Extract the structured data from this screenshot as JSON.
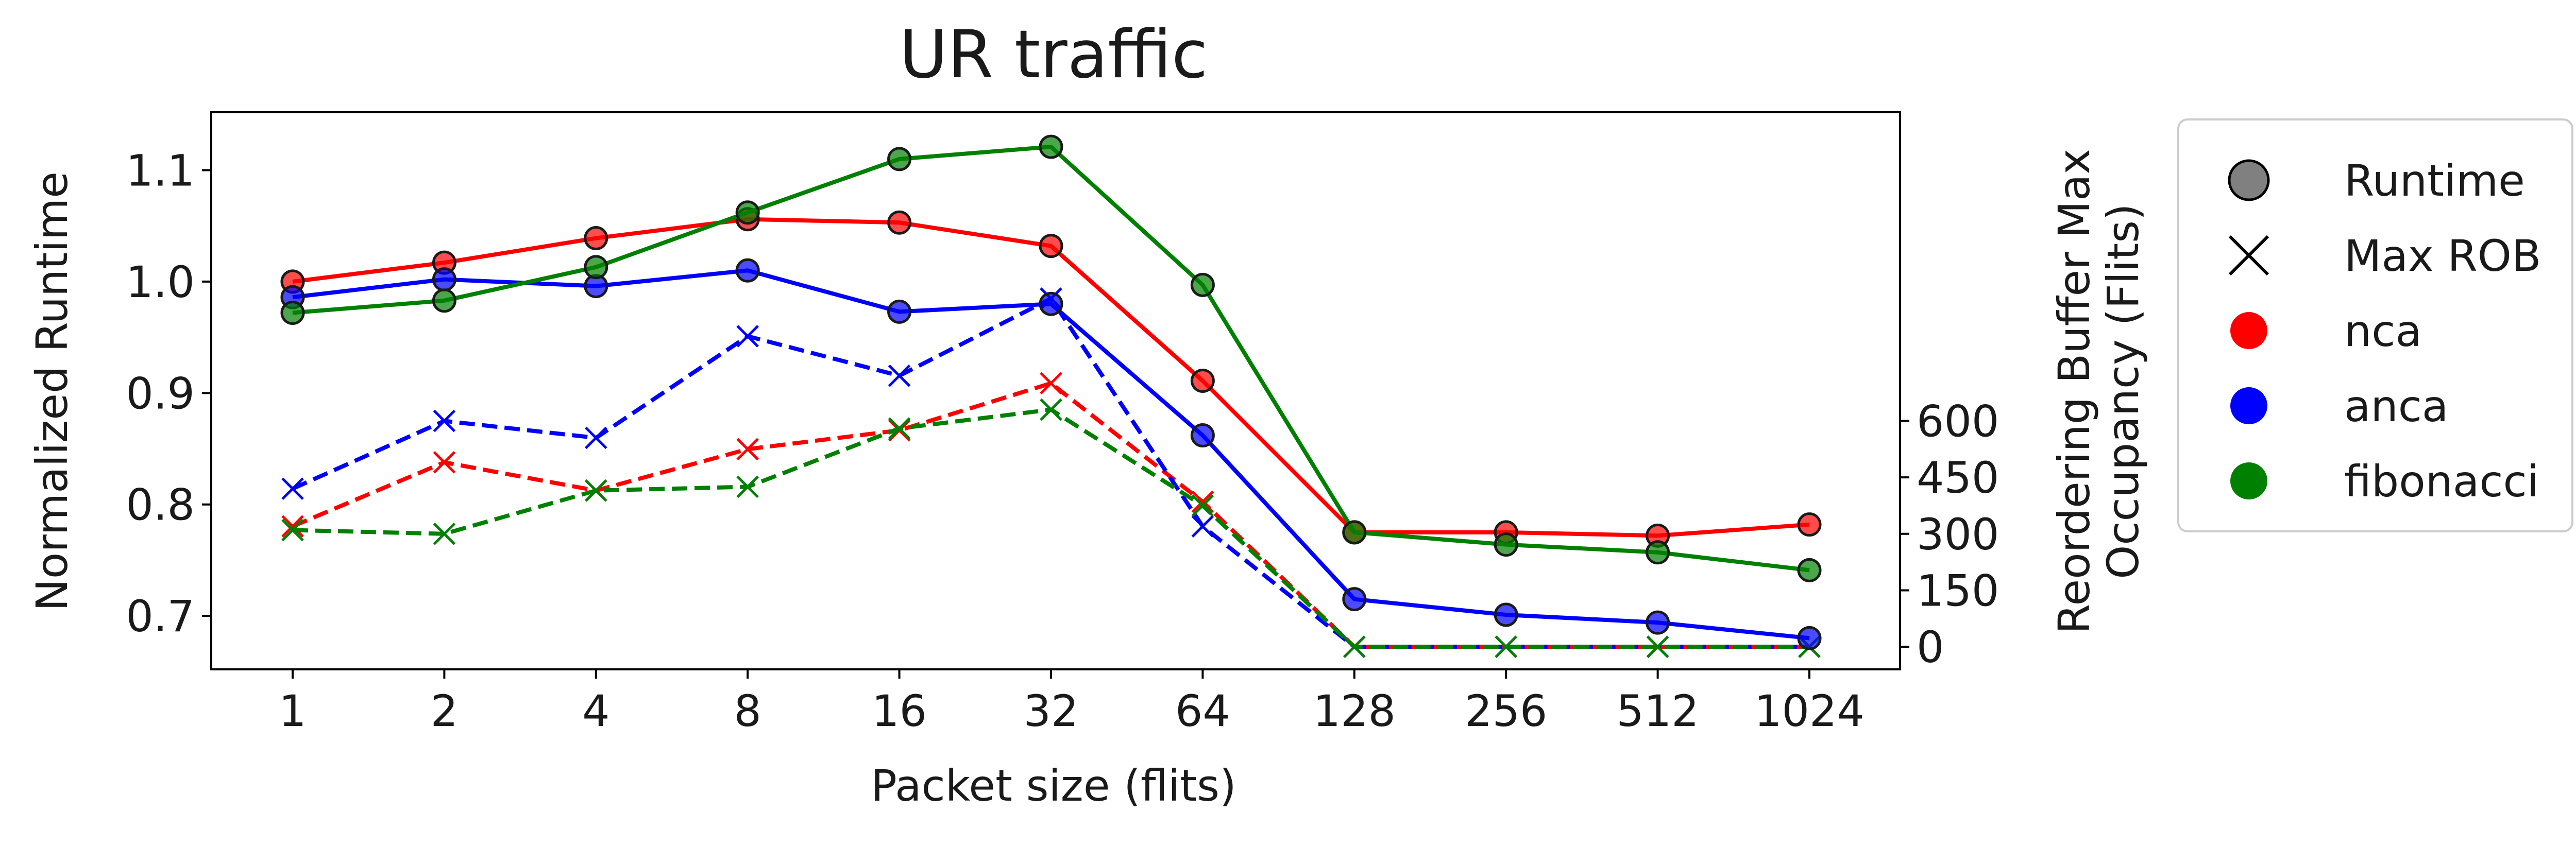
{
  "chart_data": {
    "type": "line",
    "title": "UR traffic",
    "xlabel": "Packet size (flits)",
    "ylabel": "Normalized Runtime",
    "ylabel_right": [
      "Reordering Buffer Max",
      "Occupancy (Flits)"
    ],
    "categories": [
      "1",
      "2",
      "4",
      "8",
      "16",
      "32",
      "64",
      "128",
      "256",
      "512",
      "1024"
    ],
    "ylim": [
      0.652,
      1.152
    ],
    "yticks": [
      "0.7",
      "0.8",
      "0.9",
      "1.0",
      "1.1"
    ],
    "ylim_right": [
      -60,
      1420
    ],
    "yticks_right": [
      "0",
      "150",
      "300",
      "450",
      "600"
    ],
    "grid": false,
    "legend_position": "outside-right",
    "legend": [
      {
        "label": "Runtime",
        "marker": "circle",
        "color": "#808080"
      },
      {
        "label": "Max ROB",
        "marker": "x",
        "color": "#000000"
      },
      {
        "label": "nca",
        "marker": "dot",
        "color": "#ff0000"
      },
      {
        "label": "anca",
        "marker": "dot",
        "color": "#0000ff"
      },
      {
        "label": "fibonacci",
        "marker": "dot",
        "color": "#008000"
      }
    ],
    "series": [
      {
        "name": "nca",
        "metric": "Runtime",
        "axis": "left",
        "color": "#ff0000",
        "style": "solid",
        "values": [
          1.0,
          1.017,
          1.039,
          1.056,
          1.053,
          1.032,
          0.911,
          0.775,
          0.775,
          0.772,
          0.782
        ]
      },
      {
        "name": "anca",
        "metric": "Runtime",
        "axis": "left",
        "color": "#0000ff",
        "style": "solid",
        "values": [
          0.986,
          1.002,
          0.996,
          1.01,
          0.973,
          0.98,
          0.862,
          0.715,
          0.701,
          0.694,
          0.68
        ]
      },
      {
        "name": "fibonacci",
        "metric": "Runtime",
        "axis": "left",
        "color": "#008000",
        "style": "solid",
        "values": [
          0.972,
          0.983,
          1.013,
          1.062,
          1.11,
          1.121,
          0.997,
          0.775,
          0.764,
          0.757,
          0.741
        ]
      },
      {
        "name": "nca",
        "metric": "Max ROB",
        "axis": "right",
        "color": "#ff0000",
        "style": "dashed",
        "values": [
          320,
          490,
          415,
          525,
          575,
          700,
          385,
          0,
          0,
          0,
          0
        ]
      },
      {
        "name": "anca",
        "metric": "Max ROB",
        "axis": "right",
        "color": "#0000ff",
        "style": "dashed",
        "values": [
          420,
          600,
          555,
          825,
          720,
          925,
          320,
          0,
          0,
          0,
          0
        ]
      },
      {
        "name": "fibonacci",
        "metric": "Max ROB",
        "axis": "right",
        "color": "#008000",
        "style": "dashed",
        "values": [
          310,
          300,
          415,
          425,
          580,
          630,
          375,
          0,
          0,
          0,
          0
        ]
      }
    ]
  }
}
